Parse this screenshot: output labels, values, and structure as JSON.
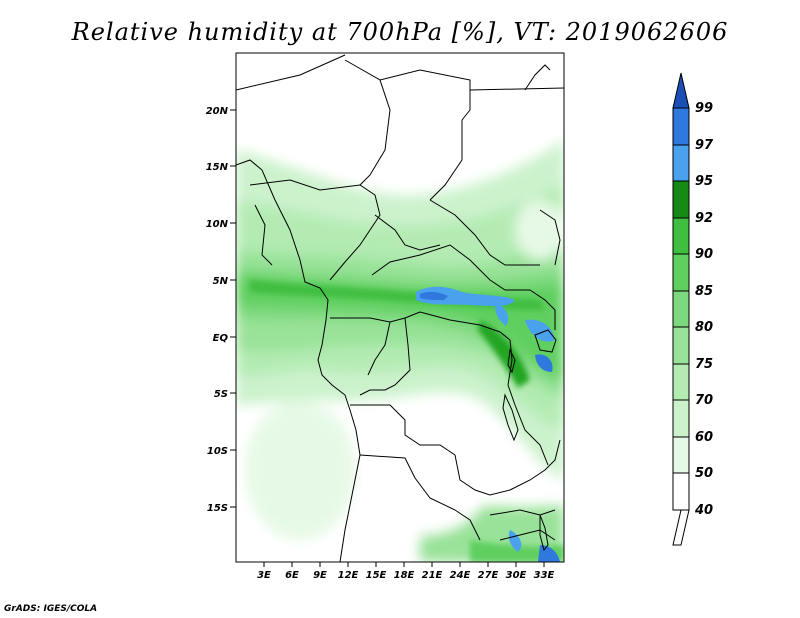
{
  "title": "Relative humidity at 700hPa [%], VT: 2019062606",
  "credit": "GrADS: IGES/COLA",
  "map": {
    "lat_labels": [
      "20N",
      "15N",
      "10N",
      "5N",
      "EQ",
      "5S",
      "10S",
      "15S"
    ],
    "lon_labels": [
      "3E",
      "6E",
      "9E",
      "12E",
      "15E",
      "18E",
      "21E",
      "24E",
      "27E",
      "30E",
      "33E"
    ]
  },
  "colorbar": {
    "levels": [
      "40",
      "50",
      "60",
      "70",
      "75",
      "80",
      "85",
      "90",
      "92",
      "95",
      "97",
      "99"
    ],
    "colors": [
      "#ffffff",
      "#e6f9e6",
      "#ccf2cc",
      "#b3ebb3",
      "#99e299",
      "#7dd97d",
      "#5fcf5f",
      "#3fbe3f",
      "#20a520",
      "#158a15",
      "#4aa2ee",
      "#2f78dd",
      "#1a4fb8"
    ]
  }
}
